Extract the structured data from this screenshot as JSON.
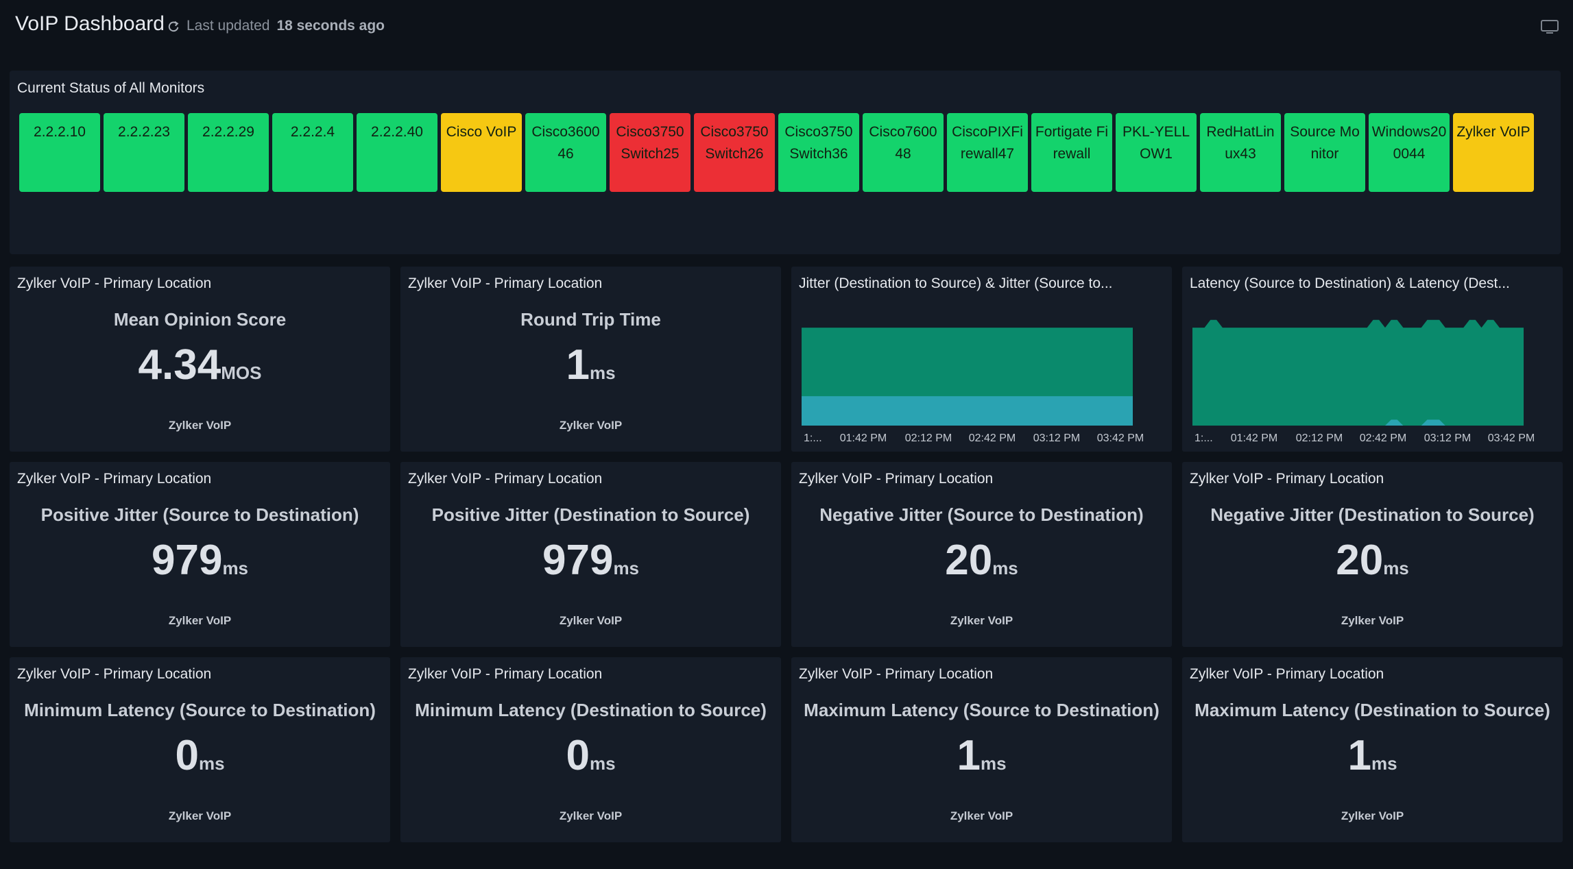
{
  "header": {
    "title": "VoIP Dashboard",
    "updated_prefix": "Last updated",
    "updated_value": "18 seconds ago"
  },
  "status_panel": {
    "title": "Current Status of All Monitors",
    "monitors": [
      {
        "label": "2.2.2.10",
        "status": "green"
      },
      {
        "label": "2.2.2.23",
        "status": "green"
      },
      {
        "label": "2.2.2.29",
        "status": "green"
      },
      {
        "label": "2.2.2.4",
        "status": "green"
      },
      {
        "label": "2.2.2.40",
        "status": "green"
      },
      {
        "label": "Cisco VoIP",
        "status": "yellow"
      },
      {
        "label": "Cisco360046",
        "status": "green"
      },
      {
        "label": "Cisco3750Switch25",
        "status": "red"
      },
      {
        "label": "Cisco3750Switch26",
        "status": "red"
      },
      {
        "label": "Cisco3750Switch36",
        "status": "green"
      },
      {
        "label": "Cisco760048",
        "status": "green"
      },
      {
        "label": "CiscoPIXFirewall47",
        "status": "green"
      },
      {
        "label": "Fortigate Firewall",
        "status": "green"
      },
      {
        "label": "PKL-YELLOW1",
        "status": "green"
      },
      {
        "label": "RedHatLinux43",
        "status": "green"
      },
      {
        "label": "Source Monitor",
        "status": "green"
      },
      {
        "label": "Windows200044",
        "status": "green"
      },
      {
        "label": "Zylker VoIP",
        "status": "yellow"
      }
    ],
    "colors": {
      "green": "#14d36c",
      "yellow": "#f6c812",
      "red": "#ec2f35"
    }
  },
  "widgets": {
    "mos": {
      "label": "Zylker VoIP - Primary Location",
      "metric": "Mean Opinion Score",
      "value": "4.34",
      "unit": "MOS",
      "source": "Zylker VoIP"
    },
    "rtt": {
      "label": "Zylker VoIP - Primary Location",
      "metric": "Round Trip Time",
      "value": "1",
      "unit": "ms",
      "source": "Zylker VoIP"
    },
    "pj_sd": {
      "label": "Zylker VoIP - Primary Location",
      "metric": "Positive Jitter (Source to Destination)",
      "value": "979",
      "unit": "ms",
      "source": "Zylker VoIP"
    },
    "pj_ds": {
      "label": "Zylker VoIP - Primary Location",
      "metric": "Positive Jitter (Destination to Source)",
      "value": "979",
      "unit": "ms",
      "source": "Zylker VoIP"
    },
    "nj_sd": {
      "label": "Zylker VoIP - Primary Location",
      "metric": "Negative Jitter (Source to Destination)",
      "value": "20",
      "unit": "ms",
      "source": "Zylker VoIP"
    },
    "nj_ds": {
      "label": "Zylker VoIP - Primary Location",
      "metric": "Negative Jitter (Destination to Source)",
      "value": "20",
      "unit": "ms",
      "source": "Zylker VoIP"
    },
    "minl_sd": {
      "label": "Zylker VoIP - Primary Location",
      "metric": "Minimum Latency (Source to Destination)",
      "value": "0",
      "unit": "ms",
      "source": "Zylker VoIP"
    },
    "minl_ds": {
      "label": "Zylker VoIP - Primary Location",
      "metric": "Minimum Latency (Destination to Source)",
      "value": "0",
      "unit": "ms",
      "source": "Zylker VoIP"
    },
    "maxl_sd": {
      "label": "Zylker VoIP - Primary Location",
      "metric": "Maximum Latency (Source to Destination)",
      "value": "1",
      "unit": "ms",
      "source": "Zylker VoIP"
    },
    "maxl_ds": {
      "label": "Zylker VoIP - Primary Location",
      "metric": "Maximum Latency (Destination to Source)",
      "value": "1",
      "unit": "ms",
      "source": "Zylker VoIP"
    }
  },
  "chart_data": [
    {
      "type": "area",
      "title": "Jitter (Destination to Source) & Jitter (Source to...",
      "x_ticks": [
        "1:...",
        "01:42 PM",
        "02:12 PM",
        "02:42 PM",
        "03:12 PM",
        "03:42 PM"
      ],
      "series": [
        {
          "color": "#0a8a6c",
          "values": [
            1,
            1,
            1,
            1,
            1,
            1,
            1,
            1,
            1,
            1,
            1,
            1,
            1,
            1,
            1,
            1,
            1,
            1,
            1,
            1,
            1,
            1,
            1,
            1,
            1,
            1,
            1,
            1,
            1,
            1,
            1,
            1,
            1,
            1,
            1,
            1,
            1,
            1,
            1,
            1,
            1,
            1,
            1,
            1,
            1,
            1,
            1,
            1,
            1,
            1
          ]
        },
        {
          "color": "#2aa3b2",
          "values": [
            0.3,
            0.3,
            0.3,
            0.3,
            0.3,
            0.3,
            0.3,
            0.3,
            0.3,
            0.3,
            0.3,
            0.3,
            0.3,
            0.3,
            0.3,
            0.3,
            0.3,
            0.3,
            0.3,
            0.3,
            0.3,
            0.3,
            0.3,
            0.3,
            0.3,
            0.3,
            0.3,
            0.3,
            0.3,
            0.3,
            0.3,
            0.3,
            0.3,
            0.3,
            0.3,
            0.3,
            0.3,
            0.3,
            0.3,
            0.3,
            0.3,
            0.3,
            0.3,
            0.3,
            0.3,
            0.3,
            0.3,
            0.3,
            0.3,
            0.3
          ]
        }
      ],
      "ylim": [
        0,
        1.12
      ]
    },
    {
      "type": "area",
      "title": "Latency (Source to Destination) & Latency (Dest...",
      "x_ticks": [
        "1:...",
        "01:42 PM",
        "02:12 PM",
        "02:42 PM",
        "03:12 PM",
        "03:42 PM"
      ],
      "series": [
        {
          "color": "#0a8a6c",
          "values": [
            1,
            1,
            1,
            1.08,
            1.08,
            1,
            1,
            1,
            1,
            1,
            1,
            1,
            1,
            1,
            1,
            1,
            1,
            1,
            1,
            1,
            1,
            1,
            1,
            1,
            1,
            1,
            1,
            1,
            1,
            1,
            1.08,
            1.08,
            1,
            1.08,
            1.08,
            1,
            1,
            1,
            1,
            1.08,
            1.08,
            1.08,
            1,
            1,
            1,
            1,
            1.08,
            1.08,
            1,
            1.08,
            1.08,
            1,
            1,
            1,
            1,
            1
          ]
        },
        {
          "color": "#2aa3b2",
          "values": [
            0,
            0,
            0,
            0,
            0,
            0,
            0,
            0,
            0,
            0,
            0,
            0,
            0,
            0,
            0,
            0,
            0,
            0,
            0,
            0,
            0,
            0,
            0,
            0,
            0,
            0,
            0,
            0,
            0,
            0,
            0,
            0,
            0,
            0.06,
            0.06,
            0,
            0,
            0,
            0,
            0.06,
            0.06,
            0.06,
            0,
            0,
            0,
            0,
            0,
            0,
            0,
            0,
            0,
            0,
            0,
            0,
            0,
            0
          ]
        }
      ],
      "ylim": [
        0,
        1.12
      ]
    }
  ]
}
